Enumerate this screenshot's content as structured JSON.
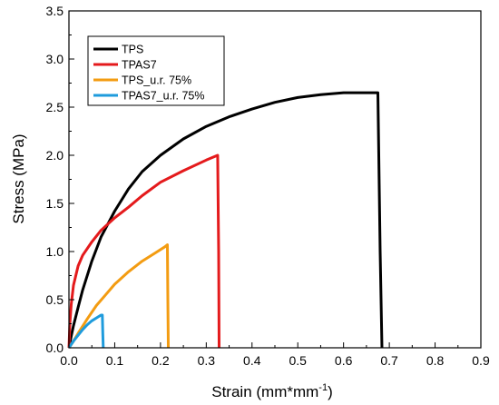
{
  "chart_data": {
    "type": "line",
    "xlabel": "Strain (mm*mm",
    "xlabel_sup": "-1",
    "xlabel_close": ")",
    "ylabel": "Stress (MPa)",
    "xlim": [
      0.0,
      0.9
    ],
    "ylim": [
      0.0,
      3.5
    ],
    "x_ticks": [
      "0.0",
      "0.1",
      "0.2",
      "0.3",
      "0.4",
      "0.5",
      "0.6",
      "0.7",
      "0.8",
      "0.9"
    ],
    "y_ticks": [
      "0.0",
      "0.5",
      "1.0",
      "1.5",
      "2.0",
      "2.5",
      "3.0",
      "3.5"
    ],
    "grid": false,
    "legend_position": "top-left",
    "series": [
      {
        "name": "TPS",
        "color": "#000000",
        "points": [
          [
            0,
            0
          ],
          [
            0.005,
            0.12
          ],
          [
            0.01,
            0.23
          ],
          [
            0.02,
            0.42
          ],
          [
            0.03,
            0.6
          ],
          [
            0.05,
            0.9
          ],
          [
            0.07,
            1.15
          ],
          [
            0.1,
            1.42
          ],
          [
            0.13,
            1.65
          ],
          [
            0.16,
            1.83
          ],
          [
            0.2,
            2.0
          ],
          [
            0.25,
            2.17
          ],
          [
            0.3,
            2.3
          ],
          [
            0.35,
            2.4
          ],
          [
            0.4,
            2.48
          ],
          [
            0.45,
            2.55
          ],
          [
            0.5,
            2.6
          ],
          [
            0.55,
            2.63
          ],
          [
            0.6,
            2.65
          ],
          [
            0.65,
            2.65
          ],
          [
            0.675,
            2.65
          ],
          [
            0.677,
            2.0
          ],
          [
            0.68,
            1.0
          ],
          [
            0.684,
            0.0
          ]
        ]
      },
      {
        "name": "TPAS7",
        "color": "#e41a1c",
        "points": [
          [
            0,
            0
          ],
          [
            0.002,
            0.25
          ],
          [
            0.005,
            0.45
          ],
          [
            0.01,
            0.65
          ],
          [
            0.02,
            0.85
          ],
          [
            0.03,
            0.96
          ],
          [
            0.05,
            1.1
          ],
          [
            0.07,
            1.22
          ],
          [
            0.1,
            1.35
          ],
          [
            0.13,
            1.46
          ],
          [
            0.16,
            1.58
          ],
          [
            0.2,
            1.72
          ],
          [
            0.25,
            1.84
          ],
          [
            0.3,
            1.95
          ],
          [
            0.325,
            2.0
          ],
          [
            0.327,
            1.0
          ],
          [
            0.328,
            0.0
          ]
        ]
      },
      {
        "name": "TPS_u.r. 75%",
        "color": "#f39c12",
        "points": [
          [
            0,
            0
          ],
          [
            0.01,
            0.07
          ],
          [
            0.02,
            0.15
          ],
          [
            0.04,
            0.3
          ],
          [
            0.06,
            0.44
          ],
          [
            0.08,
            0.55
          ],
          [
            0.1,
            0.66
          ],
          [
            0.13,
            0.79
          ],
          [
            0.16,
            0.9
          ],
          [
            0.19,
            0.99
          ],
          [
            0.21,
            1.05
          ],
          [
            0.215,
            1.07
          ],
          [
            0.216,
            0.5
          ],
          [
            0.217,
            0.0
          ]
        ]
      },
      {
        "name": "TPAS7_u.r. 75%",
        "color": "#1e9bdc",
        "points": [
          [
            0,
            0
          ],
          [
            0.01,
            0.07
          ],
          [
            0.02,
            0.13
          ],
          [
            0.03,
            0.19
          ],
          [
            0.04,
            0.24
          ],
          [
            0.05,
            0.28
          ],
          [
            0.06,
            0.31
          ],
          [
            0.07,
            0.34
          ],
          [
            0.073,
            0.34
          ],
          [
            0.074,
            0.15
          ],
          [
            0.075,
            0.0
          ]
        ]
      }
    ]
  }
}
